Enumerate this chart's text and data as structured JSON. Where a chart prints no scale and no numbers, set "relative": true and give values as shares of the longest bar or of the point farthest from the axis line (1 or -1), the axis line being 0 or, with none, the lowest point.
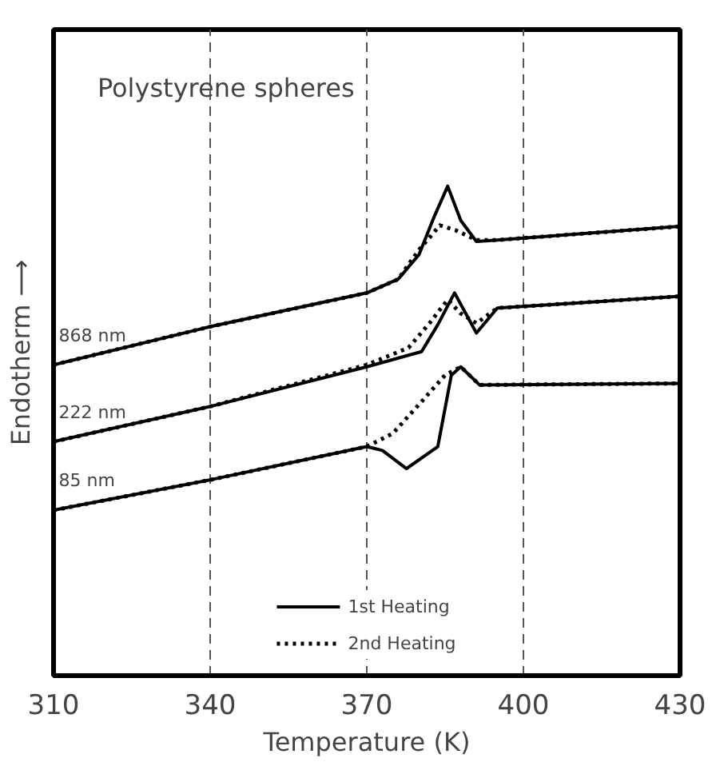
{
  "chart_data": {
    "type": "line",
    "title": "Polystyrene spheres",
    "xlabel": "Temperature (K)",
    "ylabel": "Endotherm ⟶",
    "relative": true,
    "xlim": [
      310,
      430
    ],
    "xticks": [
      310,
      340,
      370,
      400,
      430
    ],
    "grid": "x",
    "legend": "bottom",
    "tick_labels": "x",
    "annotations": [
      "868 nm",
      "222 nm",
      "85 nm"
    ],
    "series": [
      {
        "name": "1st Heating",
        "color": "#000000",
        "line_style": "solid",
        "x": [
          310,
          340,
          370,
          376,
          380,
          383,
          385.5,
          388,
          391,
          395,
          430
        ],
        "values": [
          0.635,
          0.713,
          0.782,
          0.81,
          0.86,
          0.94,
          1.0,
          0.93,
          0.887,
          0.89,
          0.918
        ]
      },
      {
        "name": "2nd Heating",
        "color": "#000000",
        "line_style": "dotted",
        "x": [
          310,
          340,
          370,
          376,
          380,
          384,
          387,
          391,
          395,
          430
        ],
        "values": [
          0.635,
          0.713,
          0.782,
          0.81,
          0.87,
          0.92,
          0.91,
          0.89,
          0.89,
          0.918
        ]
      },
      {
        "color": "#000000",
        "line_style": "solid",
        "x": [
          310,
          340,
          370,
          380.5,
          383.6,
          386.8,
          391,
          395,
          430
        ],
        "values": [
          0.478,
          0.55,
          0.631,
          0.662,
          0.717,
          0.782,
          0.7,
          0.751,
          0.775
        ]
      },
      {
        "color": "#000000",
        "line_style": "dotted",
        "x": [
          310,
          340,
          370,
          378,
          382,
          385.5,
          388,
          391,
          395,
          430
        ],
        "values": [
          0.478,
          0.55,
          0.635,
          0.67,
          0.72,
          0.768,
          0.74,
          0.72,
          0.751,
          0.775
        ]
      },
      {
        "color": "#000000",
        "line_style": "solid",
        "x": [
          310,
          340,
          370,
          373,
          377.6,
          383.6,
          386.2,
          388,
          391.6,
          430
        ],
        "values": [
          0.338,
          0.4,
          0.468,
          0.46,
          0.423,
          0.468,
          0.614,
          0.631,
          0.594,
          0.597
        ]
      },
      {
        "color": "#000000",
        "line_style": "dotted",
        "x": [
          310,
          340,
          370,
          375,
          380.5,
          385,
          388,
          391.6,
          430
        ],
        "values": [
          0.338,
          0.4,
          0.468,
          0.495,
          0.56,
          0.614,
          0.631,
          0.594,
          0.597
        ]
      }
    ]
  }
}
